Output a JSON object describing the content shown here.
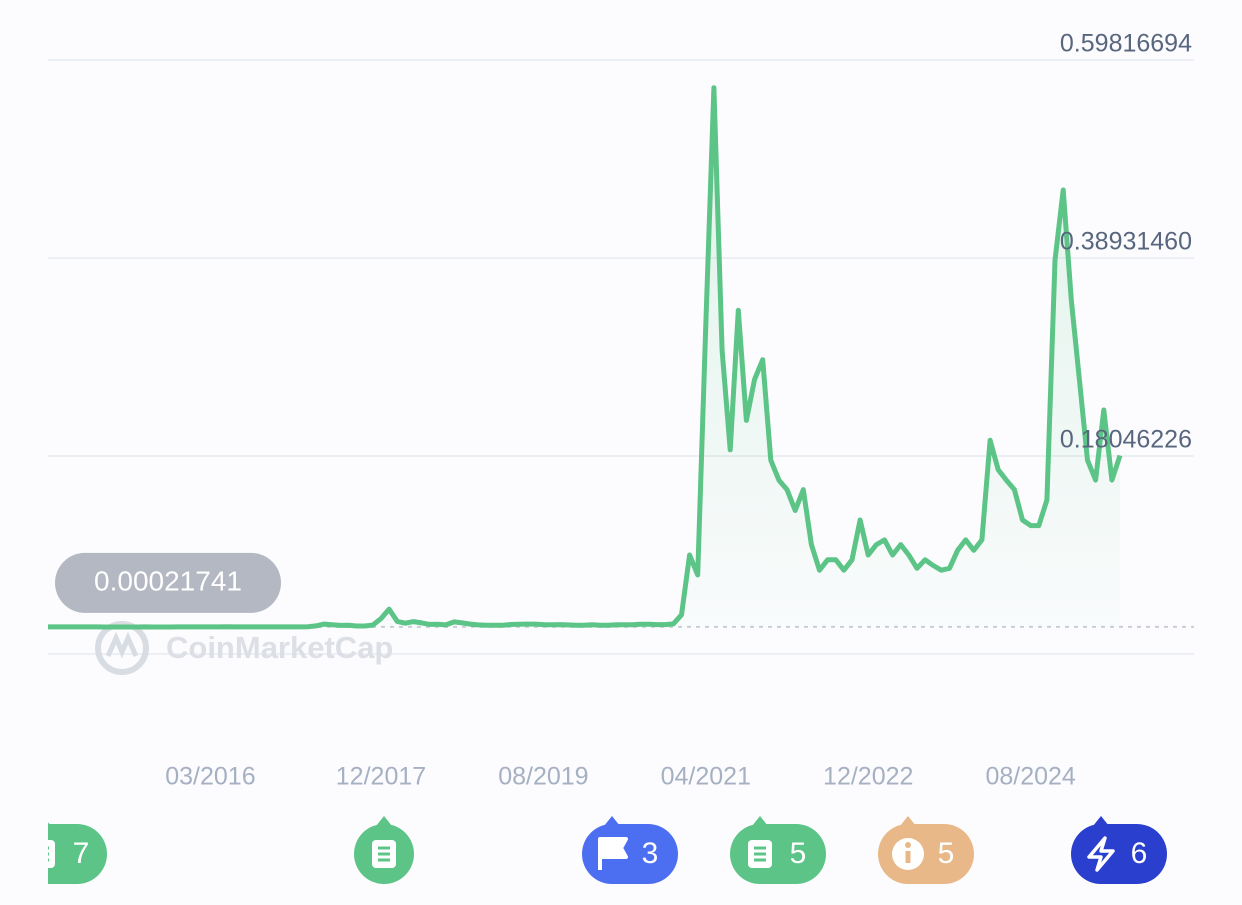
{
  "chart_data": {
    "type": "line",
    "series": [
      {
        "color": "#5cc486",
        "x": [
          "2014-07",
          "2014-08",
          "2014-09",
          "2014-10",
          "2014-11",
          "2014-12",
          "2015-01",
          "2015-02",
          "2015-03",
          "2015-04",
          "2015-05",
          "2015-06",
          "2015-07",
          "2015-08",
          "2015-09",
          "2015-10",
          "2015-11",
          "2015-12",
          "2016-01",
          "2016-02",
          "2016-03",
          "2016-04",
          "2016-05",
          "2016-06",
          "2016-07",
          "2016-08",
          "2016-09",
          "2016-10",
          "2016-11",
          "2016-12",
          "2017-01",
          "2017-02",
          "2017-03",
          "2017-04",
          "2017-05",
          "2017-06",
          "2017-07",
          "2017-08",
          "2017-09",
          "2017-10",
          "2017-11",
          "2017-12",
          "2018-01",
          "2018-02",
          "2018-03",
          "2018-04",
          "2018-05",
          "2018-06",
          "2018-07",
          "2018-08",
          "2018-09",
          "2018-10",
          "2018-11",
          "2018-12",
          "2019-01",
          "2019-02",
          "2019-03",
          "2019-04",
          "2019-05",
          "2019-06",
          "2019-07",
          "2019-08",
          "2019-09",
          "2019-10",
          "2019-11",
          "2019-12",
          "2020-01",
          "2020-02",
          "2020-03",
          "2020-04",
          "2020-05",
          "2020-06",
          "2020-07",
          "2020-08",
          "2020-09",
          "2020-10",
          "2020-11",
          "2020-12",
          "2021-01",
          "2021-02",
          "2021-03",
          "2021-04",
          "2021-05",
          "2021-06",
          "2021-07",
          "2021-08",
          "2021-09",
          "2021-10",
          "2021-11",
          "2021-12",
          "2022-01",
          "2022-02",
          "2022-03",
          "2022-04",
          "2022-05",
          "2022-06",
          "2022-07",
          "2022-08",
          "2022-09",
          "2022-10",
          "2022-11",
          "2022-12",
          "2023-01",
          "2023-02",
          "2023-03",
          "2023-04",
          "2023-05",
          "2023-06",
          "2023-07",
          "2023-08",
          "2023-09",
          "2023-10",
          "2023-11",
          "2023-12",
          "2024-01",
          "2024-02",
          "2024-03",
          "2024-04",
          "2024-05",
          "2024-06",
          "2024-07",
          "2024-08",
          "2024-09",
          "2024-10",
          "2024-11",
          "2024-12",
          "2025-01",
          "2025-02",
          "2025-03",
          "2025-04",
          "2025-05",
          "2025-06",
          "2025-07"
        ],
        "values": [
          0.00021741,
          0.00021,
          0.0002,
          0.00021,
          0.0002,
          0.00019,
          0.00016,
          0.00013,
          0.00012,
          0.00011,
          0.00012,
          0.00012,
          0.00015,
          0.00014,
          0.00013,
          0.00013,
          0.00015,
          0.00017,
          0.00023,
          0.00023,
          0.00024,
          0.00024,
          0.00028,
          0.00024,
          0.00023,
          0.00022,
          0.00023,
          0.00023,
          0.00022,
          0.00022,
          0.00024,
          0.00022,
          0.0004,
          0.0012,
          0.0032,
          0.0024,
          0.0018,
          0.002,
          0.0011,
          0.0011,
          0.0021,
          0.0089,
          0.019,
          0.006,
          0.0041,
          0.0058,
          0.0044,
          0.0028,
          0.003,
          0.0023,
          0.0055,
          0.0044,
          0.0031,
          0.0023,
          0.002,
          0.002,
          0.002,
          0.0027,
          0.003,
          0.0032,
          0.0032,
          0.0026,
          0.0025,
          0.0026,
          0.0023,
          0.002,
          0.002,
          0.0025,
          0.002,
          0.0019,
          0.0025,
          0.0025,
          0.0025,
          0.003,
          0.0029,
          0.0026,
          0.0026,
          0.0034,
          0.013,
          0.076,
          0.055,
          0.319,
          0.569,
          0.292,
          0.187,
          0.334,
          0.218,
          0.261,
          0.282,
          0.176,
          0.155,
          0.145,
          0.123,
          0.145,
          0.087,
          0.06,
          0.071,
          0.071,
          0.06,
          0.071,
          0.113,
          0.076,
          0.087,
          0.092,
          0.076,
          0.087,
          0.076,
          0.062,
          0.071,
          0.065,
          0.06,
          0.062,
          0.081,
          0.092,
          0.081,
          0.092,
          0.197,
          0.166,
          0.155,
          0.145,
          0.113,
          0.107,
          0.107,
          0.134,
          0.387,
          0.461,
          0.345,
          0.261,
          0.176,
          0.155,
          0.229,
          0.155,
          0.181
        ]
      }
    ],
    "xlim": [
      "2014-07",
      "2025-07"
    ],
    "xticks": [
      {
        "value": "2016-03",
        "label": "03/2016"
      },
      {
        "value": "2017-12",
        "label": "12/2017"
      },
      {
        "value": "2019-08",
        "label": "08/2019"
      },
      {
        "value": "2021-04",
        "label": "04/2021"
      },
      {
        "value": "2022-12",
        "label": "12/2022"
      },
      {
        "value": "2024-08",
        "label": "08/2024"
      }
    ],
    "ylim": [
      -0.02839008,
      0.59816694
    ],
    "yticks": [
      {
        "value": 0.18046226,
        "label": "0.18046226"
      },
      {
        "value": 0.3893146,
        "label": "0.38931460"
      },
      {
        "value": 0.59816694,
        "label": "0.59816694"
      }
    ],
    "grid": true,
    "reference_value": 0.00021741,
    "watermark": "CoinMarketCap"
  },
  "events": {
    "counts": [
      "7",
      "3",
      "5",
      "5",
      "6"
    ]
  }
}
